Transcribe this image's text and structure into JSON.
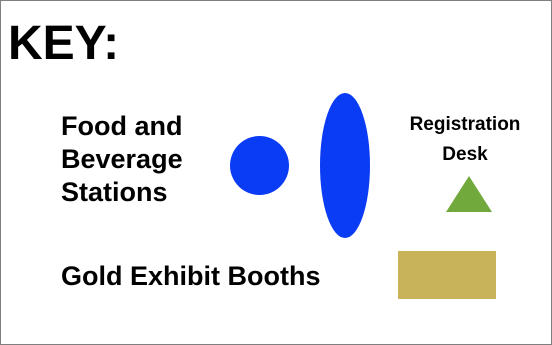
{
  "key": {
    "title": "KEY:",
    "food_beverage": {
      "label_lines": [
        "Food and",
        "Beverage",
        "Stations"
      ],
      "color": "#0a3cf5",
      "symbols": [
        "circle",
        "ellipse"
      ]
    },
    "registration": {
      "label_lines": [
        "Registration",
        "Desk"
      ],
      "color": "#72a93d",
      "symbol": "triangle"
    },
    "gold_booths": {
      "label": "Gold Exhibit Booths",
      "color": "#c8b25a",
      "symbol": "rectangle"
    }
  }
}
